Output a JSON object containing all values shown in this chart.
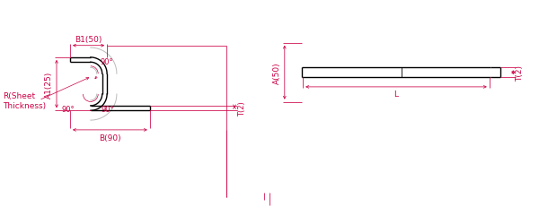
{
  "bg_color": "#ffffff",
  "dim_color": "#cc0044",
  "part_color": "#000000",
  "arc_color": "#bbbbbb",
  "labels": {
    "B1": "B1(50)",
    "A1": "A1(25)",
    "R": "R(Sheet\nThickness)",
    "B": "B(90)",
    "A_mid": "A(50)",
    "T_left": "T(2)",
    "T_right": "T(2)",
    "angle1": "90°",
    "angle2": "90°",
    "angle3": "90°",
    "L": "L"
  },
  "font_size": 6.5
}
